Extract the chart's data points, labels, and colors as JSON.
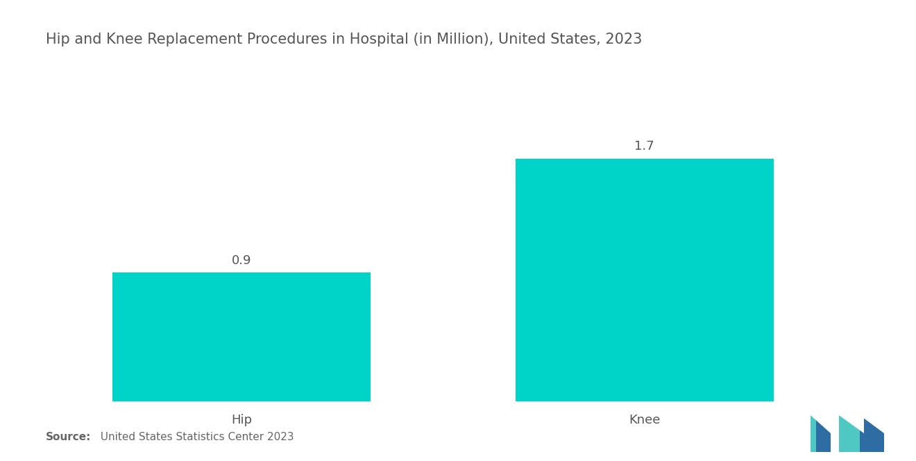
{
  "title": "Hip and Knee Replacement Procedures in Hospital (in Million), United States, 2023",
  "categories": [
    "Hip",
    "Knee"
  ],
  "values": [
    0.9,
    1.7
  ],
  "bar_color": "#00D4C8",
  "value_labels": [
    "0.9",
    "1.7"
  ],
  "source_bold": "Source:",
  "source_text": "  United States Statistics Center 2023",
  "background_color": "#ffffff",
  "title_color": "#555555",
  "label_color": "#555555",
  "value_color": "#555555",
  "source_color": "#666666",
  "title_fontsize": 15,
  "label_fontsize": 13,
  "value_fontsize": 13,
  "source_fontsize": 11,
  "ylim": [
    0,
    2.1
  ],
  "bar_width": 0.32,
  "x_positions": [
    0.22,
    0.72
  ],
  "xlim": [
    0.0,
    1.0
  ]
}
